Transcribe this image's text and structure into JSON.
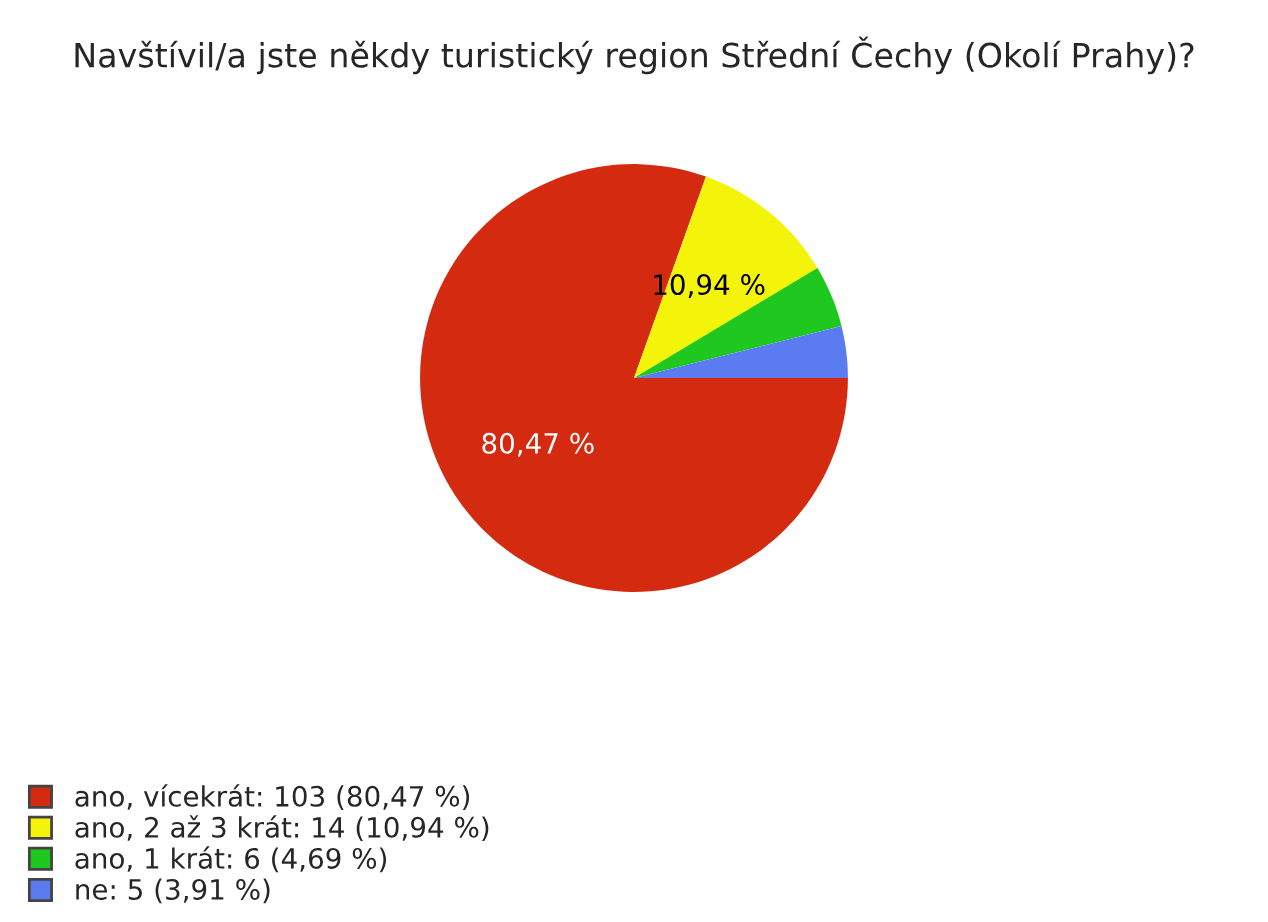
{
  "chart_data": {
    "type": "pie",
    "title": "Navštívil/a jste někdy turistický region Střední Čechy (Okolí Prahy)?",
    "categories": [
      "ano, vícekrát: 103 (80,47 %)",
      "ano, 2 až 3 krát: 14 (10,94 %)",
      "ano, 1 krát: 6 (4,69 %)",
      "ne: 5 (3,91 %)"
    ],
    "values": [
      80.47,
      10.94,
      4.69,
      3.91
    ],
    "colors": [
      "#d42a10",
      "#f4f40a",
      "#1ec81e",
      "#5a7cf0"
    ],
    "value_labels": [
      "80,47 %",
      "10,94 %",
      null,
      null
    ],
    "legend": "bottom left"
  }
}
